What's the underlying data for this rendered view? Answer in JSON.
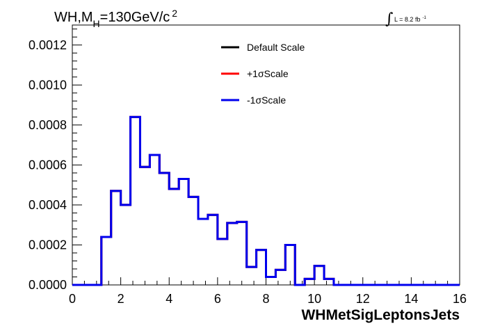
{
  "chart_data": {
    "type": "histogram-step",
    "title": {
      "prefix": "WH,M",
      "subscript": "H",
      "middle": "=130GeV/c",
      "superscript": "2"
    },
    "lumi_label": {
      "integral": "∫",
      "text": "L = 8.2 fb",
      "exponent": "-1"
    },
    "xlabel": "WHMetSigLeptonsJets",
    "ylabel": "",
    "xlim": [
      0,
      16
    ],
    "ylim": [
      0,
      0.0013
    ],
    "x_ticks": [
      0,
      2,
      4,
      6,
      8,
      10,
      12,
      14,
      16
    ],
    "x_tick_labels": [
      "0",
      "2",
      "4",
      "6",
      "8",
      "10",
      "12",
      "14",
      "16"
    ],
    "y_ticks": [
      0,
      0.0002,
      0.0004,
      0.0006,
      0.0008,
      0.001,
      0.0012
    ],
    "y_tick_labels": [
      "0.0000",
      "0.0002",
      "0.0004",
      "0.0006",
      "0.0008",
      "0.0010",
      "0.0012"
    ],
    "bin_width": 0.4,
    "bin_edges_start": 0,
    "series": [
      {
        "name": "Default Scale",
        "color": "#000000",
        "values": [
          0,
          0,
          0,
          0.00024,
          0.00047,
          0.0004,
          0.00084,
          0.00059,
          0.00065,
          0.00056,
          0.00048,
          0.00053,
          0.00044,
          0.00033,
          0.00035,
          0.00023,
          0.00031,
          0.000315,
          9e-05,
          0.000175,
          4e-05,
          7.5e-05,
          0.0002,
          0.0,
          3e-05,
          9.5e-05,
          3e-05,
          0,
          0,
          0,
          0,
          0,
          0,
          0,
          0,
          0,
          0,
          0,
          0,
          0
        ]
      },
      {
        "name": "+1σScale",
        "color": "#ff0000",
        "values": [
          0,
          0,
          0,
          0.00024,
          0.00047,
          0.0004,
          0.00084,
          0.00059,
          0.00065,
          0.00056,
          0.00048,
          0.00053,
          0.00044,
          0.00033,
          0.00035,
          0.00023,
          0.00031,
          0.000315,
          9e-05,
          0.000175,
          4e-05,
          7.5e-05,
          0.0002,
          0.0,
          3e-05,
          9.5e-05,
          3e-05,
          0,
          0,
          0,
          0,
          0,
          0,
          0,
          0,
          0,
          0,
          0,
          0,
          0
        ]
      },
      {
        "name": "-1σScale",
        "color": "#0000ee",
        "values": [
          0,
          0,
          0,
          0.00024,
          0.00047,
          0.0004,
          0.00084,
          0.00059,
          0.00065,
          0.00056,
          0.00048,
          0.00053,
          0.00044,
          0.00033,
          0.00035,
          0.00023,
          0.00031,
          0.000315,
          9e-05,
          0.000175,
          4e-05,
          7.5e-05,
          0.0002,
          0.0,
          3e-05,
          9.5e-05,
          3e-05,
          0,
          0,
          0,
          0,
          0,
          0,
          0,
          0,
          0,
          0,
          0,
          0,
          0
        ]
      }
    ],
    "legend_position": "top-center",
    "grid": false
  }
}
